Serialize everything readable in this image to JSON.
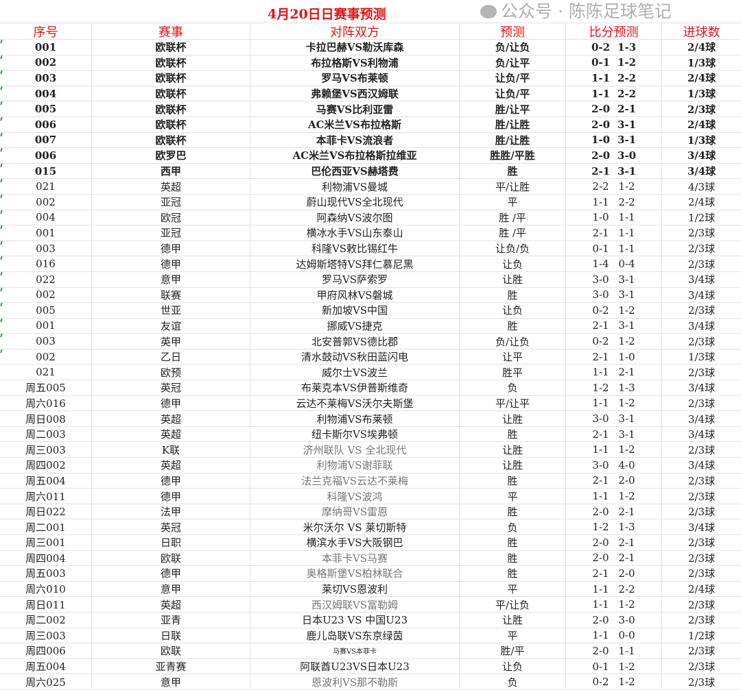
{
  "title": "4月20日日赛事预测",
  "headers": [
    "序号",
    "赛事",
    "对阵双方",
    "预测",
    "比分预测",
    "进球数"
  ],
  "watermark": "公众号 · 陈陈足球笔记",
  "accent_color": "#e0151b",
  "rows": [
    {
      "no": "001",
      "league": "欧联杯",
      "match": "卡拉巴赫VS勒沃库森",
      "pick": "负/让负",
      "s1": "0-2",
      "s2": "1-3",
      "goals": "2/4球"
    },
    {
      "no": "002",
      "league": "欧联杯",
      "match": "布拉格斯VS利物浦",
      "pick": "负/让平",
      "s1": "0-1",
      "s2": "1-2",
      "goals": "1/3球"
    },
    {
      "no": "003",
      "league": "欧联杯",
      "match": "罗马VS布莱顿",
      "pick": "让负/平",
      "s1": "1-1",
      "s2": "2-2",
      "goals": "2/4球"
    },
    {
      "no": "004",
      "league": "欧联杯",
      "match": "弗赖堡VS西汉姆联",
      "pick": "让负/平",
      "s1": "1-1",
      "s2": "2-2",
      "goals": "1/3球"
    },
    {
      "no": "005",
      "league": "欧联杯",
      "match": "马赛VS比利亚雷",
      "pick": "胜/让平",
      "s1": "2-0",
      "s2": "2-1",
      "goals": "2/3球"
    },
    {
      "no": "006",
      "league": "欧联杯",
      "match": "AC米兰VS布拉格斯",
      "pick": "胜/让胜",
      "s1": "2-0",
      "s2": "3-1",
      "goals": "2/4球"
    },
    {
      "no": "007",
      "league": "欧联杯",
      "match": "本菲卡VS流浪者",
      "pick": "胜/让胜",
      "s1": "1-0",
      "s2": "3-1",
      "goals": "1/3球"
    },
    {
      "no": "006",
      "league": "欧罗巴",
      "match": "AC米兰VS布拉格斯拉维亚",
      "pick": "胜胜/平胜",
      "s1": "2-0",
      "s2": "3-0",
      "goals": "3/4球"
    },
    {
      "no": "015",
      "league": "西甲",
      "match": "巴伦西亚VS赫塔费",
      "pick": "胜",
      "s1": "2-1",
      "s2": "3-1",
      "goals": "3/4球"
    },
    {
      "no": "021",
      "league": "英超",
      "match": "利物浦VS曼城",
      "pick": "平/让胜",
      "s1": "2-2",
      "s2": "1-2",
      "goals": "4/3球"
    },
    {
      "no": "002",
      "league": "亚冠",
      "match": "蔚山现代VS全北现代",
      "pick": "平",
      "s1": "1-1",
      "s2": "2-2",
      "goals": "2/4球"
    },
    {
      "no": "004",
      "league": "欧冠",
      "match": "阿森纳VS波尔图",
      "pick": "胜 /平",
      "s1": "1-0",
      "s2": "1-1",
      "goals": "1/2球"
    },
    {
      "no": "001",
      "league": "亚冠",
      "match": "横冰水手VS山东泰山",
      "pick": "胜 /平",
      "s1": "2-1",
      "s2": "1-1",
      "goals": "2/3球"
    },
    {
      "no": "003",
      "league": "德甲",
      "match": "科隆VS敕比锡红牛",
      "pick": "让负/负",
      "s1": "0-1",
      "s2": "1-1",
      "goals": "2/3球"
    },
    {
      "no": "016",
      "league": "德甲",
      "match": "达姆斯塔特VS拜仁慕尼黑",
      "pick": "让负",
      "s1": "1-4",
      "s2": "0-4",
      "goals": "2/3球"
    },
    {
      "no": "022",
      "league": "意甲",
      "match": "罗马VS萨索罗",
      "pick": "让胜",
      "s1": "3-0",
      "s2": "3-1",
      "goals": "3/4球"
    },
    {
      "no": "002",
      "league": "联赛",
      "match": "甲府风林VS磐城",
      "pick": "胜",
      "s1": "3-0",
      "s2": "3-1",
      "goals": "3/4球"
    },
    {
      "no": "005",
      "league": "世亚",
      "match": "新加坡VS中国",
      "pick": "让负",
      "s1": "0-2",
      "s2": "1-2",
      "goals": "2/3球"
    },
    {
      "no": "001",
      "league": "友谊",
      "match": "挪威VS捷克",
      "pick": "胜",
      "s1": "2-1",
      "s2": "3-1",
      "goals": "3/4球"
    },
    {
      "no": "003",
      "league": "英甲",
      "match": "北安普郭VS德比郡",
      "pick": "负/让负",
      "s1": "0-2",
      "s2": "1-2",
      "goals": "2/3球"
    },
    {
      "no": "002",
      "league": "乙日",
      "match": "清水鼓动VS秋田蓝闪电",
      "pick": "让平",
      "s1": "2-1",
      "s2": "1-0",
      "goals": "1/3球"
    },
    {
      "no": "021",
      "league": "欧预",
      "match": "威尔士VS波兰",
      "pick": "胜平",
      "s1": "1-1",
      "s2": "2-1",
      "goals": "2/3球"
    },
    {
      "no": "周五005",
      "league": "英冠",
      "match": "布莱克本VS伊普斯维奇",
      "pick": "负",
      "s1": "1-2",
      "s2": "1-3",
      "goals": "3/4球"
    },
    {
      "no": "周六016",
      "league": "德甲",
      "match": "云达不莱梅VS沃尔夫斯堡",
      "pick": "平/让平",
      "s1": "1-1",
      "s2": "1-2",
      "goals": "2/3球"
    },
    {
      "no": "周日008",
      "league": "英超",
      "match": "利物浦VS布莱顿",
      "pick": "让胜",
      "s1": "3-0",
      "s2": "3-1",
      "goals": "3/4球"
    },
    {
      "no": "周二003",
      "league": "英超",
      "match": "纽卡斯尔VS埃弗顿",
      "pick": "胜",
      "s1": "2-1",
      "s2": "3-1",
      "goals": "3/4球"
    },
    {
      "no": "周三003",
      "league": "K联",
      "match": "济州联队 VS 全北现代",
      "pick": "让胜",
      "s1": "1-1",
      "s2": "1-2",
      "goals": "2/3球"
    },
    {
      "no": "周四002",
      "league": "英超",
      "match": "利物浦VS谢菲联",
      "pick": "让胜",
      "s1": "3-0",
      "s2": "4-0",
      "goals": "3/4球"
    },
    {
      "no": "周五004",
      "league": "德甲",
      "match": "法兰克福VS云达不莱梅",
      "pick": "胜",
      "s1": "2-1",
      "s2": "2-0",
      "goals": "2/3球"
    },
    {
      "no": "周六011",
      "league": "德甲",
      "match": "科隆VS波鸿",
      "pick": "平",
      "s1": "1-1",
      "s2": "1-2",
      "goals": "2/3球"
    },
    {
      "no": "周日022",
      "league": "法甲",
      "match": "摩纳哥VS雷恩",
      "pick": "胜",
      "s1": "2-0",
      "s2": "2-1",
      "goals": "2/3球"
    },
    {
      "no": "周二001",
      "league": "英冠",
      "match": "米尔沃尔 VS 莱切斯特",
      "pick": "负",
      "s1": "1-2",
      "s2": "1-3",
      "goals": "3/4球"
    },
    {
      "no": "周三001",
      "league": "日职",
      "match": "横滨水手VS大阪钢巴",
      "pick": "胜",
      "s1": "2-0",
      "s2": "2-1",
      "goals": "2/3球"
    },
    {
      "no": "周四004",
      "league": "欧联",
      "match": "本菲卡VS马赛",
      "pick": "胜",
      "s1": "2-0",
      "s2": "2-1",
      "goals": "2/3球"
    },
    {
      "no": "周五003",
      "league": "德甲",
      "match": "奥格斯堡VS柏林联合",
      "pick": "胜",
      "s1": "2-1",
      "s2": "2-0",
      "goals": "2/3球"
    },
    {
      "no": "周六010",
      "league": "意甲",
      "match": "莱切VS恩波利",
      "pick": "平",
      "s1": "1-1",
      "s2": "2-2",
      "goals": "2/4球"
    },
    {
      "no": "周日011",
      "league": "英超",
      "match": "西汉姆联VS富勒姆",
      "pick": "平/让负",
      "s1": "1-1",
      "s2": "1-2",
      "goals": "2/3球"
    },
    {
      "no": "周二002",
      "league": "亚青",
      "match": "日本U23 VS 中国U23",
      "pick": "让胜",
      "s1": "2-0",
      "s2": "3-0",
      "goals": "2/3球"
    },
    {
      "no": "周三003",
      "league": "日联",
      "match": "鹿儿岛联VS东京绿茵",
      "pick": "平",
      "s1": "1-1",
      "s2": "0-0",
      "goals": "1/2球"
    },
    {
      "no": "周四006",
      "league": "欧联",
      "match": "马赛VS本菲卡",
      "pick": "胜/平",
      "s1": "2-0",
      "s2": "1-1",
      "goals": "2/3球"
    },
    {
      "no": "周五004",
      "league": "亚青赛",
      "match": "阿联酋U23VS日本U23",
      "pick": "让负",
      "s1": "0-1",
      "s2": "1-2",
      "goals": "2/3球"
    },
    {
      "no": "周六025",
      "league": "意甲",
      "match": "恩波利VS那不勒斯",
      "pick": "负",
      "s1": "0-2",
      "s2": "1-2",
      "goals": "2/3球"
    }
  ]
}
